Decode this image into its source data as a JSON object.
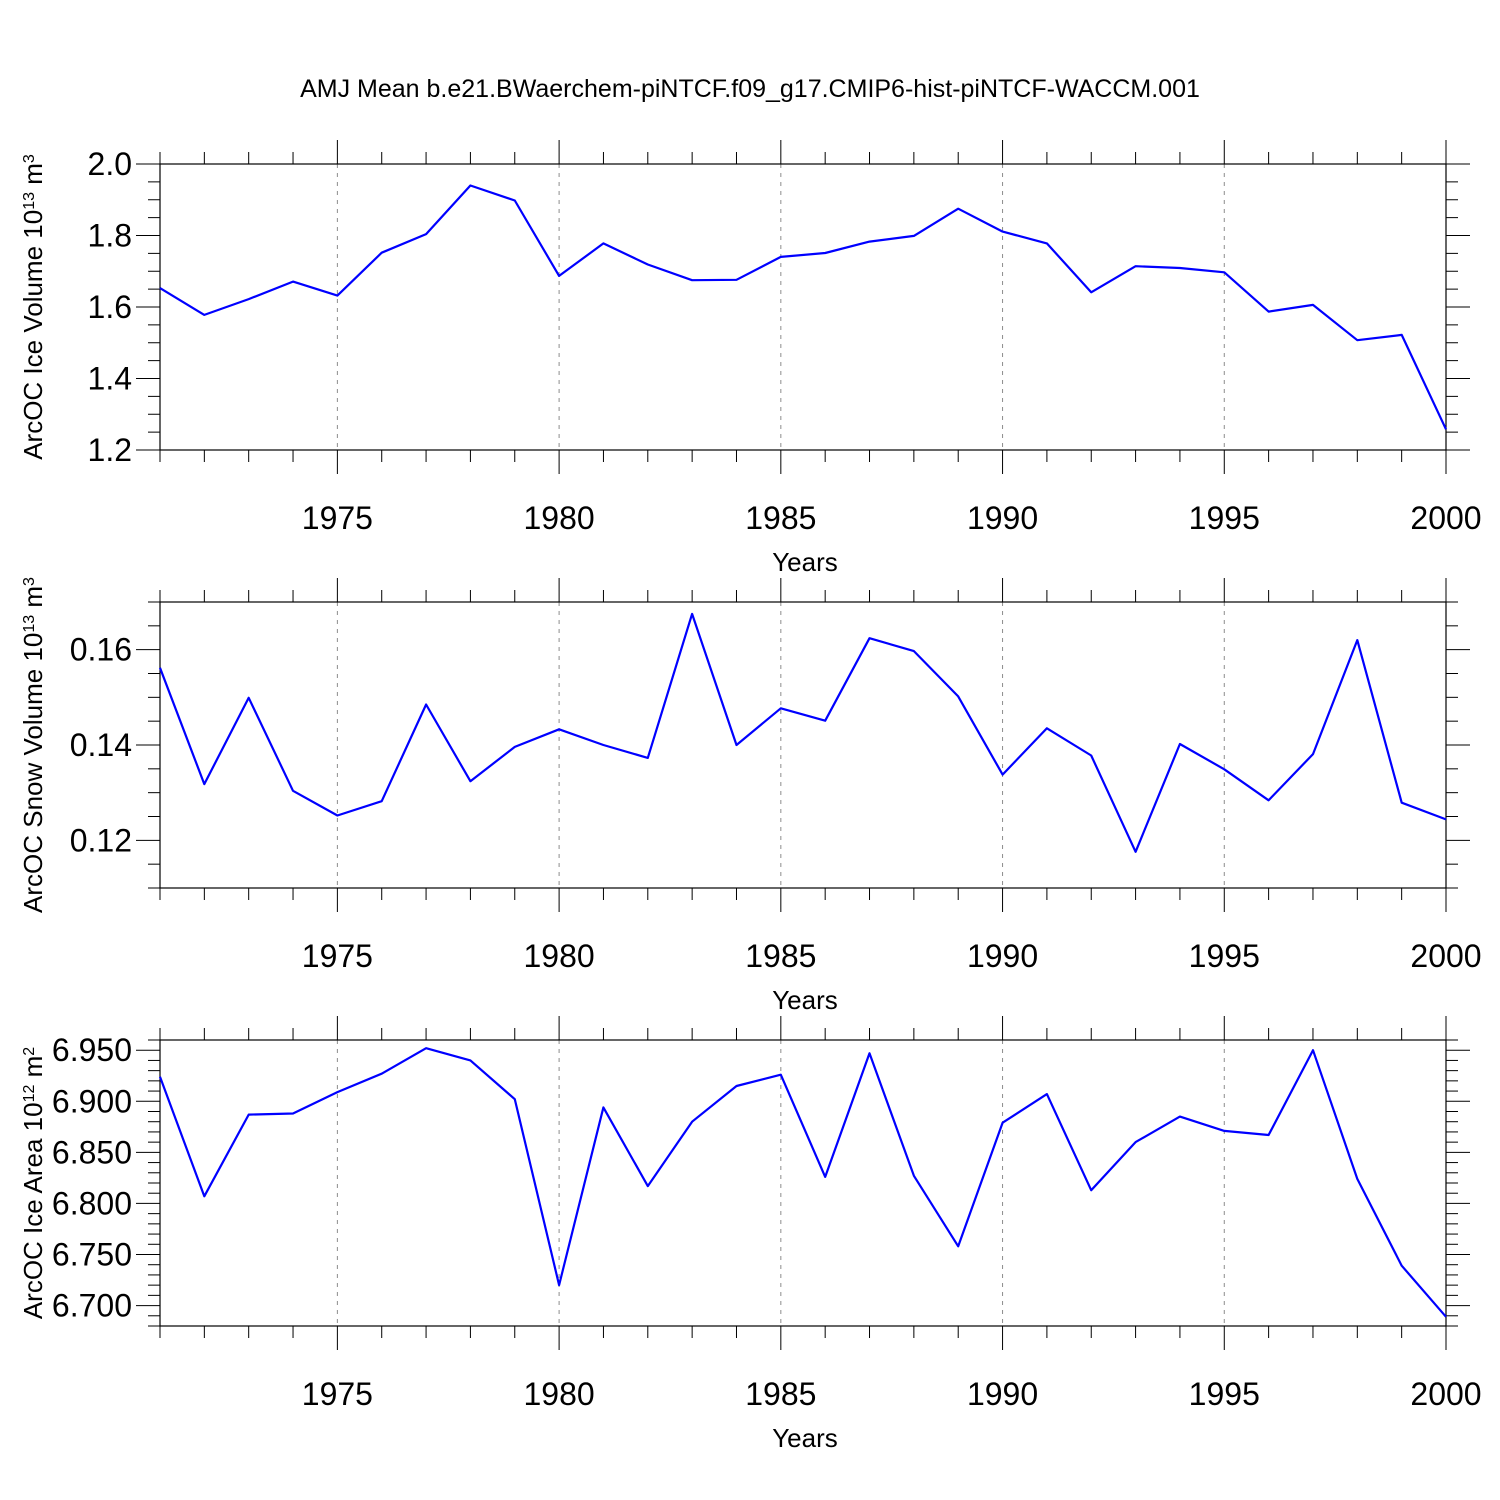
{
  "page_title": "AMJ Mean b.e21.BWaerchem-piNTCF.f09_g17.CMIP6-hist-piNTCF-WACCM.001",
  "colors": {
    "line": "#0000ff",
    "axis": "#000000",
    "grid": "#8c8c8c",
    "background": "#ffffff"
  },
  "chart_data": [
    {
      "type": "line",
      "ylabel": "ArcOC Ice Volume 10",
      "ylabel_exp": "13",
      "ylabel_unit": " m",
      "ylabel_unit_exp": "3",
      "xlabel": "Years",
      "xlim": [
        1971,
        2000
      ],
      "ylim": [
        1.2,
        2.0
      ],
      "x_ticks": [
        1975,
        1980,
        1985,
        1990,
        1995,
        2000
      ],
      "y_ticks": [
        1.2,
        1.4,
        1.6,
        1.8,
        2.0
      ],
      "y_tick_labels": [
        "1.2",
        "1.4",
        "1.6",
        "1.8",
        "2.0"
      ],
      "y_minor_step": 0.05,
      "grid": "dashed vertical lines at major x ticks",
      "x": [
        1971,
        1972,
        1973,
        1974,
        1975,
        1976,
        1977,
        1978,
        1979,
        1980,
        1981,
        1982,
        1983,
        1984,
        1985,
        1986,
        1987,
        1988,
        1989,
        1990,
        1991,
        1992,
        1993,
        1994,
        1995,
        1996,
        1997,
        1998,
        1999,
        2000
      ],
      "series": [
        {
          "name": "Ice Volume",
          "values": [
            1.653,
            1.578,
            1.622,
            1.671,
            1.632,
            1.752,
            1.804,
            1.94,
            1.898,
            1.687,
            1.778,
            1.719,
            1.675,
            1.676,
            1.74,
            1.751,
            1.783,
            1.799,
            1.875,
            1.811,
            1.778,
            1.641,
            1.714,
            1.709,
            1.697,
            1.587,
            1.606,
            1.507,
            1.522,
            1.258
          ]
        }
      ]
    },
    {
      "type": "line",
      "ylabel": "ArcOC Snow Volume 10",
      "ylabel_exp": "13",
      "ylabel_unit": " m",
      "ylabel_unit_exp": "3",
      "xlabel": "Years",
      "xlim": [
        1971,
        2000
      ],
      "ylim": [
        0.11,
        0.17
      ],
      "x_ticks": [
        1975,
        1980,
        1985,
        1990,
        1995,
        2000
      ],
      "y_ticks": [
        0.12,
        0.14,
        0.16
      ],
      "y_tick_labels": [
        "0.12",
        "0.14",
        "0.16"
      ],
      "y_minor_step": 0.005,
      "grid": "dashed vertical lines at major x ticks",
      "x": [
        1971,
        1972,
        1973,
        1974,
        1975,
        1976,
        1977,
        1978,
        1979,
        1980,
        1981,
        1982,
        1983,
        1984,
        1985,
        1986,
        1987,
        1988,
        1989,
        1990,
        1991,
        1992,
        1993,
        1994,
        1995,
        1996,
        1997,
        1998,
        1999,
        2000
      ],
      "series": [
        {
          "name": "Snow Volume",
          "values": [
            0.1562,
            0.1318,
            0.1499,
            0.1304,
            0.1252,
            0.1282,
            0.1485,
            0.1324,
            0.1396,
            0.1433,
            0.14,
            0.1373,
            0.1675,
            0.14,
            0.1477,
            0.1451,
            0.1624,
            0.1597,
            0.1502,
            0.1338,
            0.1435,
            0.1378,
            0.1176,
            0.1402,
            0.1349,
            0.1284,
            0.1381,
            0.162,
            0.1279,
            0.1244
          ]
        }
      ]
    },
    {
      "type": "line",
      "ylabel": "ArcOC Ice Area 10",
      "ylabel_exp": "12",
      "ylabel_unit": " m",
      "ylabel_unit_exp": "2",
      "xlabel": "Years",
      "xlim": [
        1971,
        2000
      ],
      "ylim": [
        6.68,
        6.96
      ],
      "x_ticks": [
        1975,
        1980,
        1985,
        1990,
        1995,
        2000
      ],
      "y_ticks": [
        6.7,
        6.75,
        6.8,
        6.85,
        6.9,
        6.95
      ],
      "y_tick_labels": [
        "6.700",
        "6.750",
        "6.800",
        "6.850",
        "6.900",
        "6.950"
      ],
      "y_minor_step": 0.01,
      "grid": "dashed vertical lines at major x ticks",
      "x": [
        1971,
        1972,
        1973,
        1974,
        1975,
        1976,
        1977,
        1978,
        1979,
        1980,
        1981,
        1982,
        1983,
        1984,
        1985,
        1986,
        1987,
        1988,
        1989,
        1990,
        1991,
        1992,
        1993,
        1994,
        1995,
        1996,
        1997,
        1998,
        1999,
        2000
      ],
      "series": [
        {
          "name": "Ice Area",
          "values": [
            6.924,
            6.807,
            6.887,
            6.888,
            6.909,
            6.927,
            6.952,
            6.94,
            6.902,
            6.72,
            6.894,
            6.817,
            6.88,
            6.915,
            6.926,
            6.826,
            6.947,
            6.827,
            6.758,
            6.879,
            6.907,
            6.813,
            6.86,
            6.885,
            6.871,
            6.867,
            6.95,
            6.824,
            6.739,
            6.689
          ]
        }
      ]
    }
  ]
}
